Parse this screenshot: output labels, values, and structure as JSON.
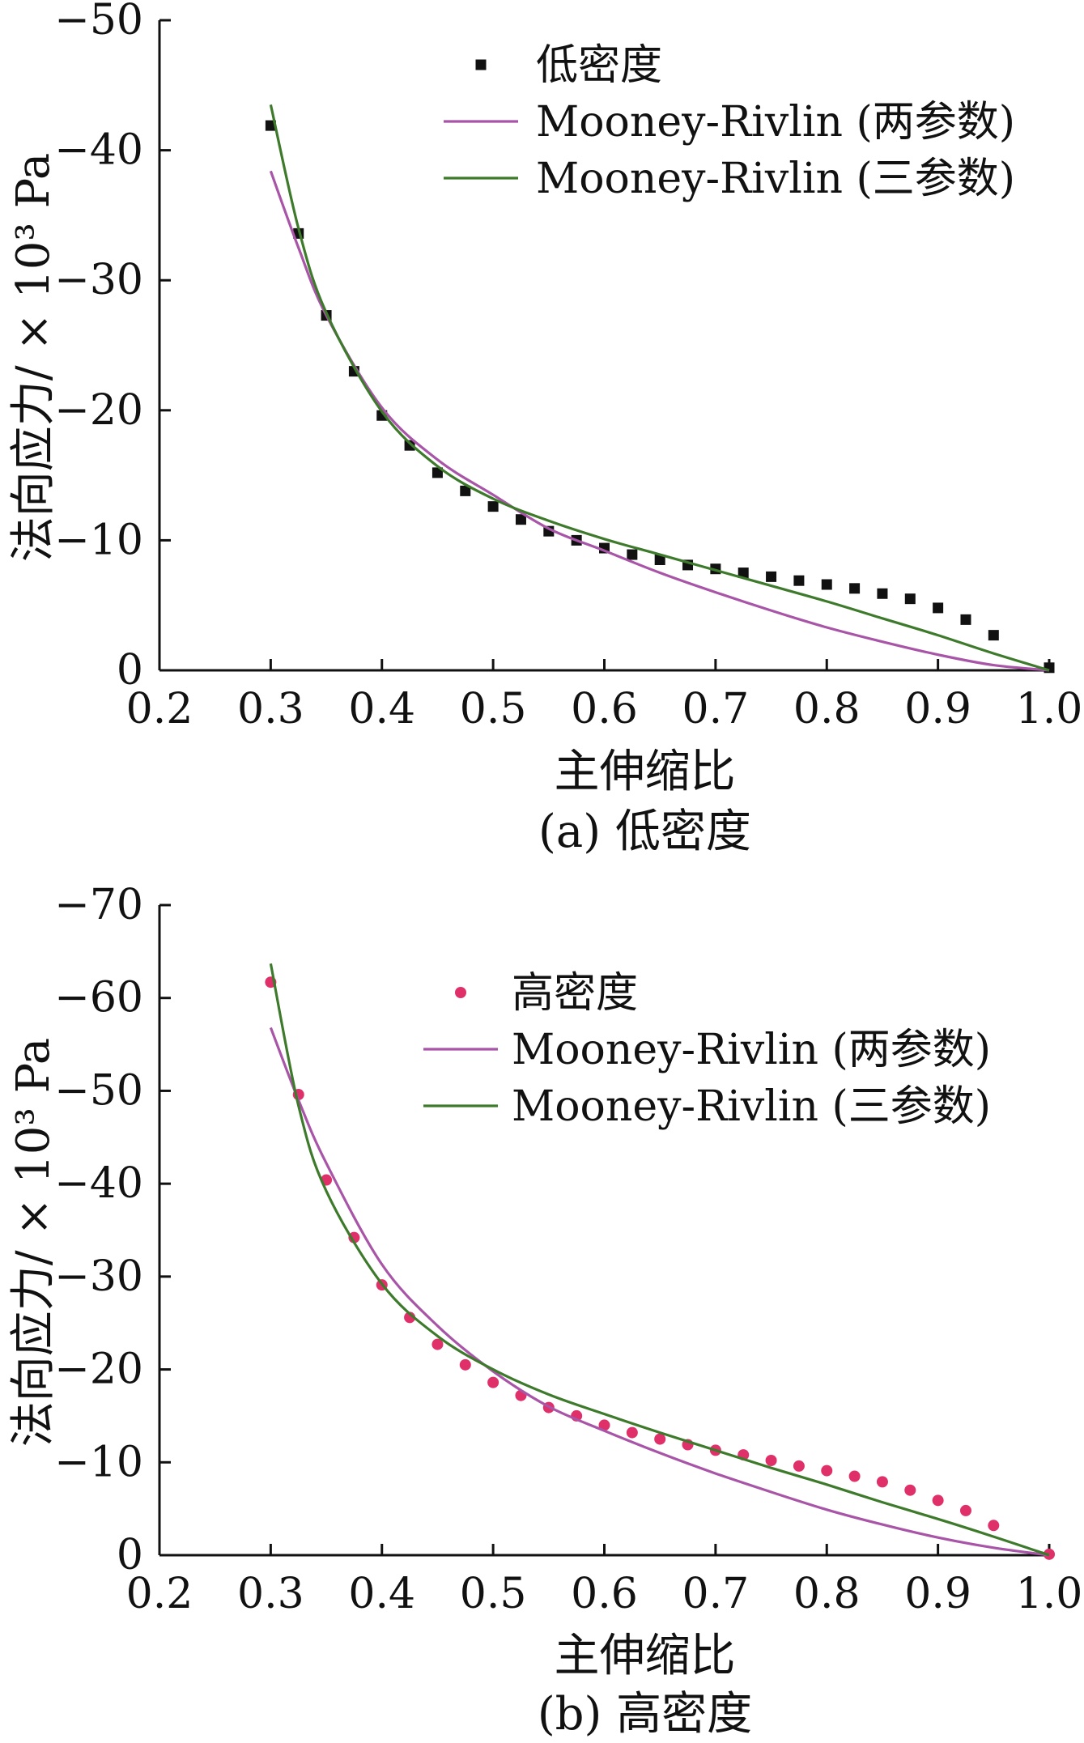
{
  "chart_data": [
    {
      "type": "scatter",
      "caption": "(a) 低密度",
      "xlabel": "主伸缩比",
      "ylabel": "法向应力/ × 10³ Pa",
      "xlim": [
        0.2,
        1.0
      ],
      "ylim": [
        -50,
        0
      ],
      "xticks": [
        "0.2",
        "0.3",
        "0.4",
        "0.5",
        "0.6",
        "0.7",
        "0.8",
        "0.9",
        "1.0"
      ],
      "yticks": [
        "−50",
        "−40",
        "−30",
        "−20",
        "−10",
        "0"
      ],
      "ytick_values": [
        -50,
        -40,
        -30,
        -20,
        -10,
        0
      ],
      "legend_position": "top-right",
      "series": [
        {
          "name": "低密度",
          "kind": "markers",
          "marker": "square",
          "color": "#111111",
          "x": [
            0.3,
            0.325,
            0.35,
            0.375,
            0.4,
            0.425,
            0.45,
            0.475,
            0.5,
            0.525,
            0.55,
            0.575,
            0.6,
            0.625,
            0.65,
            0.675,
            0.7,
            0.725,
            0.75,
            0.775,
            0.8,
            0.825,
            0.85,
            0.875,
            0.9,
            0.925,
            0.95,
            1.0
          ],
          "y": [
            -41.9,
            -33.6,
            -27.3,
            -23.0,
            -19.6,
            -17.3,
            -15.2,
            -13.8,
            -12.6,
            -11.6,
            -10.7,
            -10.0,
            -9.4,
            -8.9,
            -8.5,
            -8.1,
            -7.8,
            -7.5,
            -7.2,
            -6.9,
            -6.6,
            -6.3,
            -5.9,
            -5.5,
            -4.8,
            -3.9,
            -2.7,
            -0.2
          ]
        },
        {
          "name": "Mooney-Rivlin (两参数)",
          "kind": "line",
          "color": "#a855a8",
          "x": [
            0.3,
            0.325,
            0.35,
            0.4,
            0.45,
            0.5,
            0.55,
            0.6,
            0.65,
            0.7,
            0.75,
            0.8,
            0.85,
            0.9,
            0.95,
            1.0
          ],
          "y": [
            -38.4,
            -32.5,
            -27.3,
            -20.2,
            -16.2,
            -13.5,
            -10.9,
            -9.2,
            -7.5,
            -6.0,
            -4.6,
            -3.3,
            -2.2,
            -1.2,
            -0.4,
            0
          ]
        },
        {
          "name": "Mooney-Rivlin (三参数)",
          "kind": "line",
          "color": "#3e7a2c",
          "x": [
            0.3,
            0.325,
            0.35,
            0.4,
            0.45,
            0.5,
            0.55,
            0.6,
            0.65,
            0.7,
            0.75,
            0.8,
            0.85,
            0.9,
            0.95,
            1.0
          ],
          "y": [
            -43.5,
            -34.0,
            -27.5,
            -19.9,
            -15.7,
            -13.2,
            -11.5,
            -10.1,
            -8.9,
            -7.7,
            -6.5,
            -5.3,
            -4.0,
            -2.7,
            -1.3,
            0
          ]
        }
      ]
    },
    {
      "type": "scatter",
      "caption": "(b) 高密度",
      "xlabel": "主伸缩比",
      "ylabel": "法向应力/ × 10³ Pa",
      "xlim": [
        0.2,
        1.0
      ],
      "ylim": [
        -70,
        0
      ],
      "xticks": [
        "0.2",
        "0.3",
        "0.4",
        "0.5",
        "0.6",
        "0.7",
        "0.8",
        "0.9",
        "1.0"
      ],
      "yticks": [
        "−70",
        "−60",
        "−50",
        "−40",
        "−30",
        "−20",
        "−10",
        "0"
      ],
      "ytick_values": [
        -70,
        -60,
        -50,
        -40,
        -30,
        -20,
        -10,
        0
      ],
      "legend_position": "top-right",
      "series": [
        {
          "name": "高密度",
          "kind": "markers",
          "marker": "circle",
          "color": "#e0306a",
          "x": [
            0.3,
            0.325,
            0.35,
            0.375,
            0.4,
            0.425,
            0.45,
            0.475,
            0.5,
            0.525,
            0.55,
            0.575,
            0.6,
            0.625,
            0.65,
            0.675,
            0.7,
            0.725,
            0.75,
            0.775,
            0.8,
            0.825,
            0.85,
            0.875,
            0.9,
            0.925,
            0.95,
            1.0
          ],
          "y": [
            -61.7,
            -49.6,
            -40.4,
            -34.2,
            -29.1,
            -25.6,
            -22.7,
            -20.5,
            -18.6,
            -17.2,
            -15.9,
            -15.0,
            -14.0,
            -13.2,
            -12.5,
            -11.9,
            -11.3,
            -10.8,
            -10.2,
            -9.6,
            -9.1,
            -8.5,
            -7.9,
            -7.0,
            -5.9,
            -4.8,
            -3.2,
            -0.1
          ]
        },
        {
          "name": "Mooney-Rivlin (两参数)",
          "kind": "line",
          "color": "#a855a8",
          "x": [
            0.3,
            0.325,
            0.35,
            0.4,
            0.45,
            0.5,
            0.55,
            0.6,
            0.65,
            0.7,
            0.75,
            0.8,
            0.85,
            0.9,
            0.95,
            1.0
          ],
          "y": [
            -56.8,
            -49.0,
            -42.2,
            -31.3,
            -24.7,
            -19.8,
            -16.0,
            -13.4,
            -11.0,
            -8.8,
            -6.8,
            -4.9,
            -3.3,
            -1.9,
            -0.8,
            0
          ]
        },
        {
          "name": "Mooney-Rivlin (三参数)",
          "kind": "line",
          "color": "#3e7a2c",
          "x": [
            0.3,
            0.325,
            0.35,
            0.4,
            0.45,
            0.5,
            0.55,
            0.6,
            0.65,
            0.7,
            0.75,
            0.8,
            0.85,
            0.9,
            0.95,
            1.0
          ],
          "y": [
            -63.7,
            -48.4,
            -39.2,
            -29.2,
            -23.6,
            -20.0,
            -17.3,
            -15.2,
            -13.2,
            -11.3,
            -9.4,
            -7.6,
            -5.7,
            -3.9,
            -2.0,
            0
          ]
        }
      ]
    }
  ]
}
